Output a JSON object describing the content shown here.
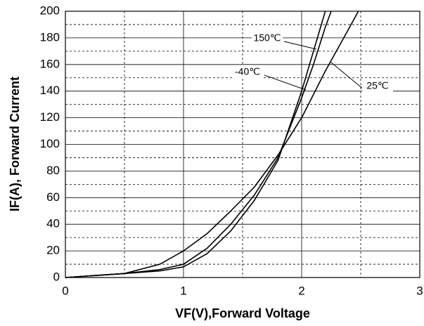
{
  "chart_data": {
    "type": "line",
    "xlabel": "VF(V),Forward Voltage",
    "ylabel": "IF(A), Forward Current",
    "xlim": [
      0,
      3
    ],
    "xticks": [
      0,
      1,
      2,
      3
    ],
    "ylim": [
      0,
      200
    ],
    "yticks": [
      0,
      20,
      40,
      60,
      80,
      100,
      120,
      140,
      160,
      180,
      200
    ],
    "grid": true,
    "series": [
      {
        "name": "150℃",
        "color": "#000000",
        "x": [
          0,
          0.5,
          0.8,
          1,
          1.2,
          1.4,
          1.6,
          1.8,
          2.0,
          2.1,
          2.2,
          2.25
        ],
        "values": [
          0,
          3,
          6,
          10,
          22,
          40,
          62,
          90,
          135,
          160,
          188,
          200
        ]
      },
      {
        "name": "-40℃",
        "color": "#000000",
        "x": [
          0,
          0.5,
          0.8,
          1,
          1.2,
          1.4,
          1.6,
          1.8,
          2.0,
          2.1,
          2.2
        ],
        "values": [
          0,
          3,
          5,
          8,
          18,
          35,
          58,
          88,
          140,
          170,
          200
        ]
      },
      {
        "name": "25℃",
        "color": "#000000",
        "x": [
          0,
          0.5,
          0.8,
          1,
          1.2,
          1.4,
          1.6,
          1.8,
          2.0,
          2.2,
          2.4,
          2.48
        ],
        "values": [
          0,
          3,
          10,
          20,
          33,
          50,
          68,
          92,
          120,
          155,
          187,
          200
        ]
      }
    ]
  }
}
